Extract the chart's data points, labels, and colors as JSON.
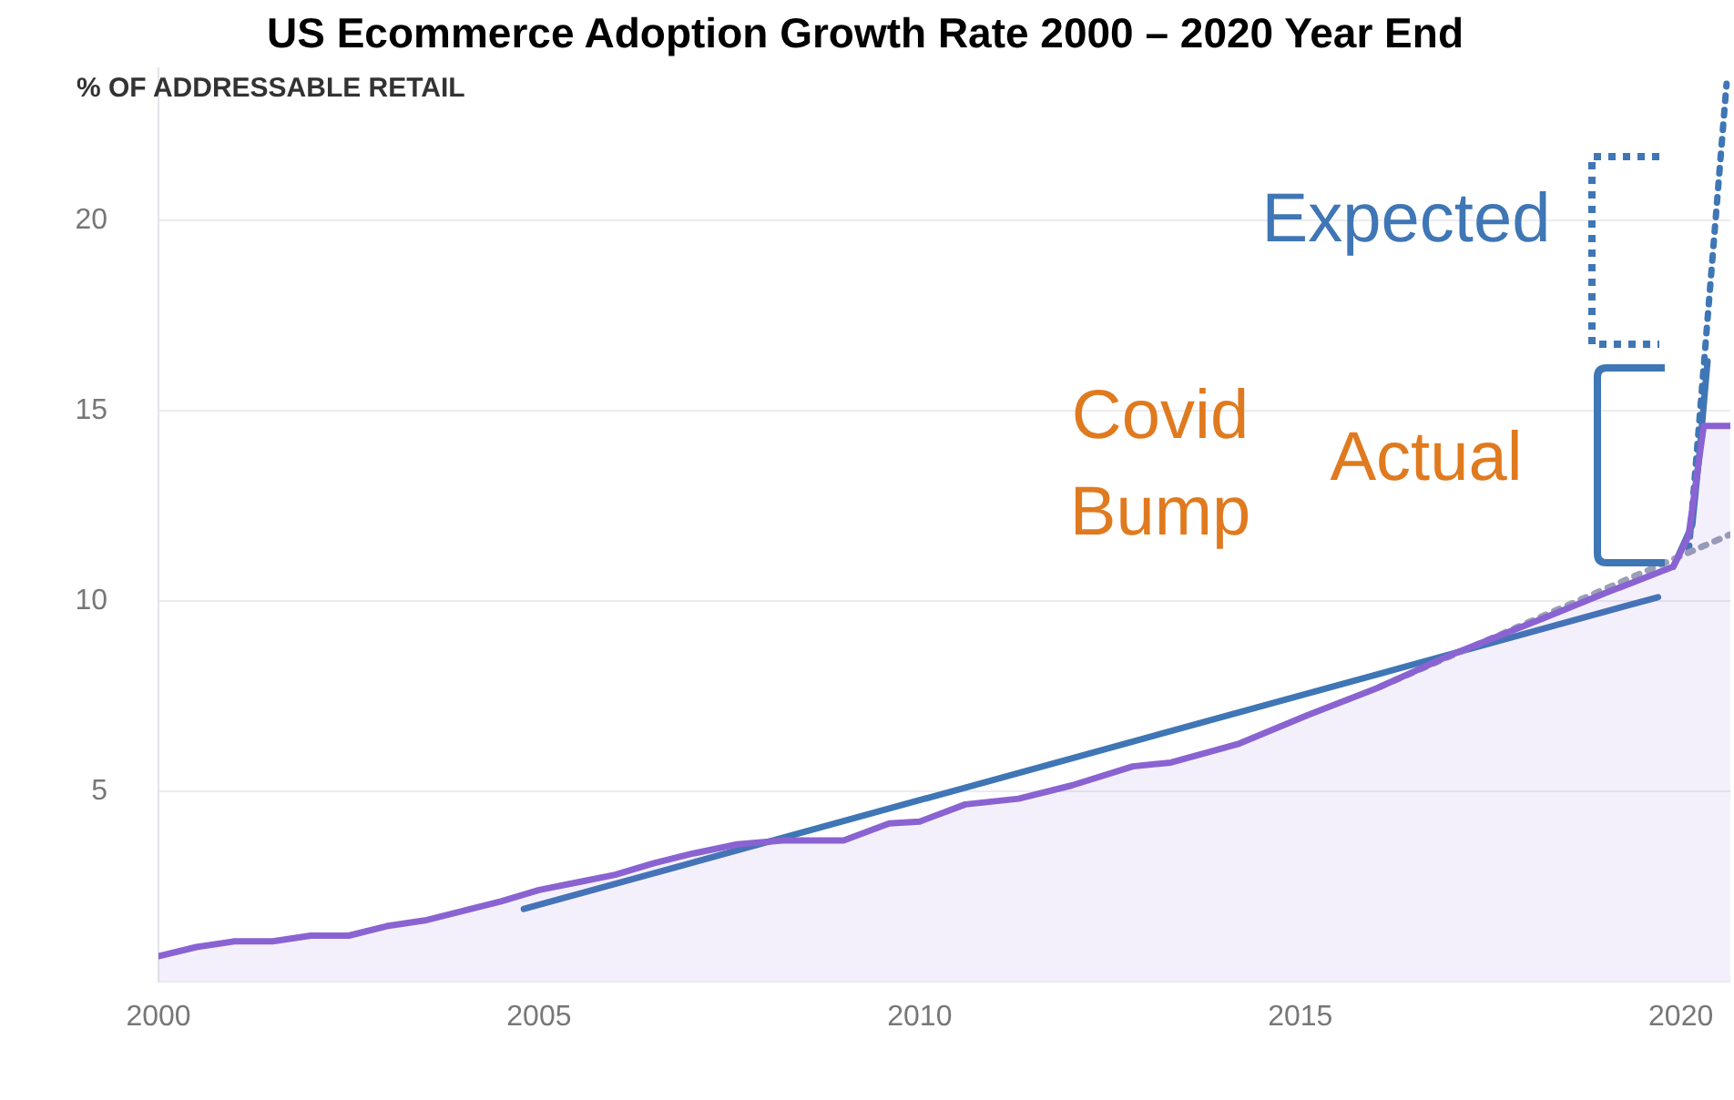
{
  "chart_data": {
    "type": "area",
    "title": "US Ecommerce Adoption Growth Rate 2000 – 2020 Year End",
    "ylabel": "% OF ADDRESSABLE RETAIL",
    "xlim": [
      2000,
      2020.65
    ],
    "xticks": [
      2000,
      2005,
      2010,
      2015,
      2020
    ],
    "ylim": [
      0,
      24
    ],
    "yticks": [
      {
        "value": 0,
        "label": null
      },
      5,
      10,
      15,
      20
    ],
    "grid": "y",
    "legend": false,
    "marker": "none",
    "series": [
      {
        "color": "#8a63d2",
        "x": [
          2000.0,
          2000.5,
          2001.0,
          2001.5,
          2002.0,
          2002.5,
          2003.0,
          2003.5,
          2004.0,
          2004.5,
          2005.0,
          2005.5,
          2006.0,
          2006.5,
          2007.0,
          2007.6,
          2008.2,
          2009.0,
          2009.6,
          2010.0,
          2010.6,
          2011.3,
          2012.0,
          2012.8,
          2013.3,
          2014.2,
          2015.1,
          2016.0,
          2017.0,
          2018.2,
          2019.0,
          2019.9,
          2020.1,
          2020.3,
          2020.65
        ],
        "values": [
          0.66,
          0.9,
          1.05,
          1.05,
          1.2,
          1.2,
          1.45,
          1.6,
          1.85,
          2.1,
          2.4,
          2.6,
          2.8,
          3.1,
          3.35,
          3.6,
          3.7,
          3.7,
          4.15,
          4.2,
          4.65,
          4.8,
          5.15,
          5.65,
          5.75,
          6.25,
          7.0,
          7.7,
          8.6,
          9.55,
          10.2,
          10.9,
          11.7,
          14.6,
          14.6
        ]
      },
      {
        "type": "line",
        "color": "#9aa0b5",
        "line_style": "dotted",
        "x": [
          2016.0,
          2020.65
        ],
        "values": [
          7.7,
          11.75
        ]
      },
      {
        "type": "line",
        "color": "#3f76b5",
        "line_style": "solid",
        "x": [
          2004.8,
          2019.7
        ],
        "values": [
          1.9,
          10.1
        ]
      },
      {
        "type": "line",
        "color": "#3f76b5",
        "line_style": "solid",
        "x": [
          2019.9,
          2020.15,
          2020.25,
          2020.35
        ],
        "values": [
          10.9,
          12.0,
          14.0,
          16.3
        ]
      },
      {
        "type": "line",
        "color": "#3f76b5",
        "line_style": "dotted",
        "x": [
          2020.1,
          2020.6
        ],
        "values": [
          11.2,
          23.6
        ]
      }
    ],
    "annotations": [
      "Covid Bump",
      "Actual",
      "Expected"
    ]
  }
}
